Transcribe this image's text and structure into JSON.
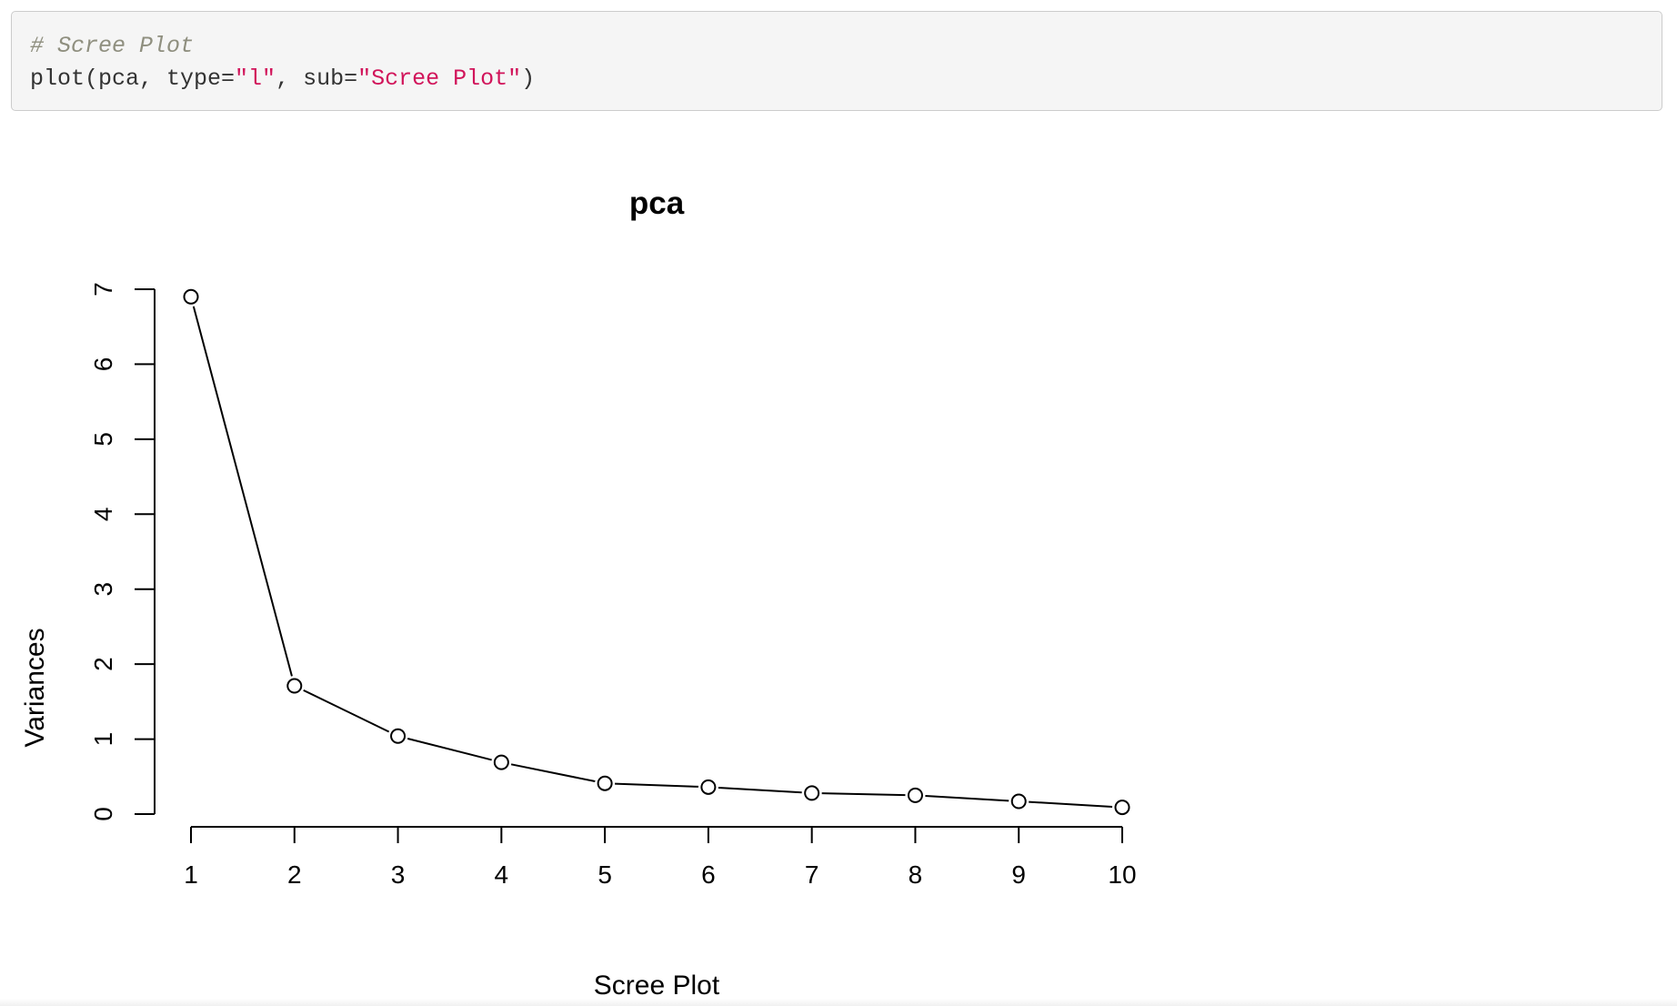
{
  "code": {
    "comment": "# Scree Plot",
    "line2": {
      "fn_prefix": "plot(pca, type=",
      "type_value": "\"l\"",
      "mid": ", sub=",
      "sub_value": "\"Scree Plot\"",
      "suffix": ")"
    }
  },
  "chart_data": {
    "type": "line",
    "title": "pca",
    "xlabel": "Scree Plot",
    "ylabel": "Variances",
    "x": [
      1,
      2,
      3,
      4,
      5,
      6,
      7,
      8,
      9,
      10
    ],
    "x_ticks": [
      "1",
      "2",
      "3",
      "4",
      "5",
      "6",
      "7",
      "8",
      "9",
      "10"
    ],
    "y_ticks": [
      "0",
      "1",
      "2",
      "3",
      "4",
      "5",
      "6",
      "7"
    ],
    "ylim": [
      0,
      7
    ],
    "xlim": [
      1,
      10
    ],
    "series": [
      {
        "values": [
          6.9,
          1.71,
          1.04,
          0.69,
          0.41,
          0.36,
          0.28,
          0.25,
          0.17,
          0.09
        ]
      }
    ],
    "marker": "open-circle",
    "grid": false,
    "colors": {
      "line": "#000000",
      "marker_fill": "#ffffff"
    }
  }
}
